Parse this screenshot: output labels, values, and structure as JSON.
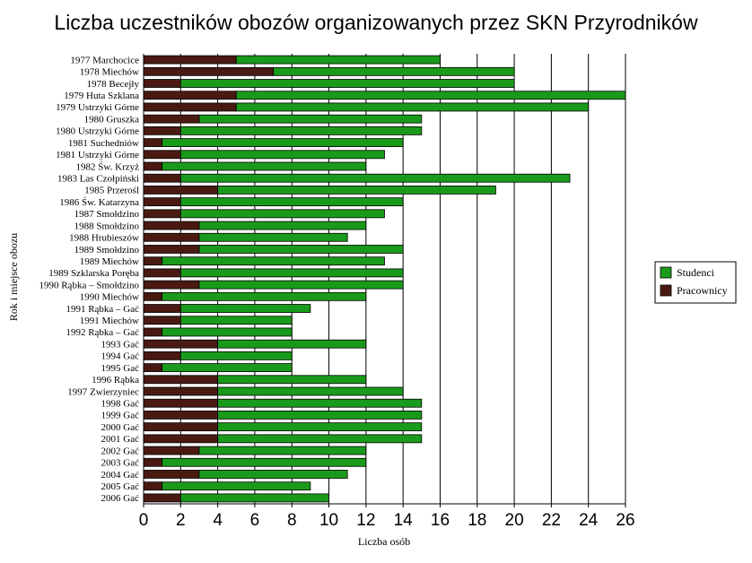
{
  "chart_data": {
    "type": "bar",
    "orientation": "horizontal",
    "stacked": true,
    "title": "Liczba uczestników obozów organizowanych przez SKN Przyrodników",
    "xlabel": "Liczba osób",
    "ylabel": "Rok i miejsce obozu",
    "xlim": [
      0,
      26
    ],
    "xticks": [
      0,
      2,
      4,
      6,
      8,
      10,
      12,
      14,
      16,
      18,
      20,
      22,
      24,
      26
    ],
    "grid": "vertical",
    "legend_position": "right",
    "categories": [
      "1977 Marchocice",
      "1978 Miechów",
      "1978 Becejły",
      "1979 Huta Szklana",
      "1979 Ustrzyki Górne",
      "1980 Gruszka",
      "1980 Ustrzyki Górne",
      "1981 Suchedniów",
      "1981 Ustrzyki Górne",
      "1982 Św. Krzyż",
      "1983 Las Czołpiński",
      "1985 Przerośl",
      "1986 Św. Katarzyna",
      "1987 Smołdzino",
      "1988 Smołdzino",
      "1988 Hrubieszów",
      "1989 Smołdzino",
      "1989 Miechów",
      "1989 Szklarska Poręba",
      "1990 Rąbka – Smołdzino",
      "1990 Miechów",
      "1991 Rąbka – Gać",
      "1991 Miechów",
      "1992 Rąbka – Gać",
      "1993 Gać",
      "1994 Gać",
      "1995 Gać",
      "1996 Rąbka",
      "1997 Zwierzyniec",
      "1998 Gać",
      "1999 Gać",
      "2000 Gać",
      "2001 Gać",
      "2002 Gać",
      "2003 Gać",
      "2004 Gać",
      "2005 Gać",
      "2006 Gać"
    ],
    "series": [
      {
        "name": "Pracownicy",
        "color": "#4a1a12",
        "values": [
          5,
          7,
          2,
          5,
          5,
          3,
          2,
          1,
          2,
          1,
          2,
          4,
          2,
          2,
          3,
          3,
          3,
          1,
          2,
          3,
          1,
          2,
          2,
          1,
          4,
          2,
          1,
          4,
          4,
          4,
          4,
          4,
          4,
          3,
          1,
          3,
          1,
          2
        ]
      },
      {
        "name": "Studenci",
        "color": "#1a9a1a",
        "values": [
          11,
          13,
          18,
          21,
          19,
          12,
          13,
          13,
          11,
          11,
          21,
          15,
          12,
          11,
          9,
          8,
          11,
          12,
          12,
          11,
          11,
          7,
          6,
          7,
          8,
          6,
          7,
          8,
          10,
          11,
          11,
          11,
          11,
          9,
          11,
          8,
          8,
          8
        ]
      }
    ]
  }
}
